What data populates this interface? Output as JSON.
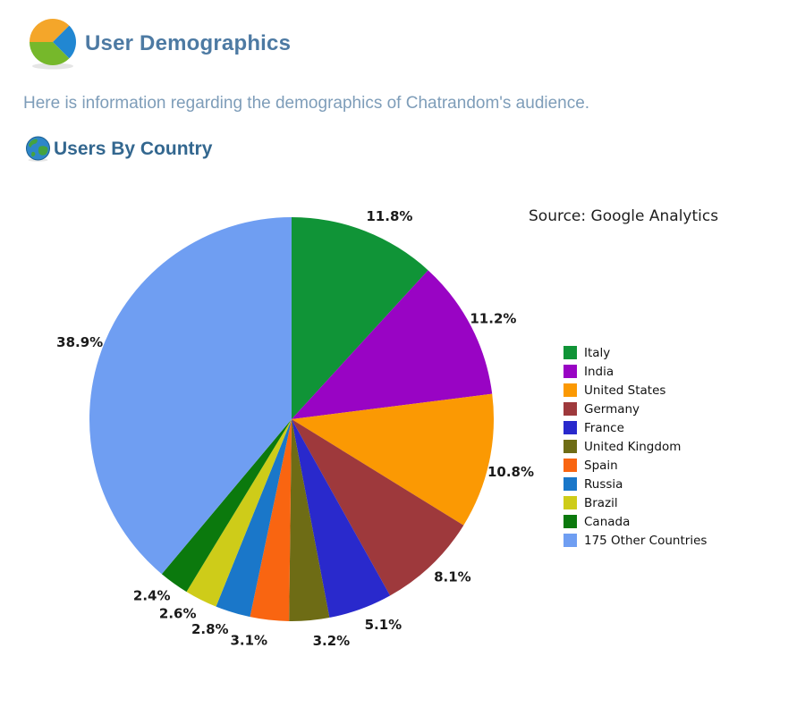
{
  "header": {
    "title": "User Demographics"
  },
  "intro": {
    "text": "Here is information regarding the demographics of Chatrandom's audience."
  },
  "section": {
    "title": "Users By Country"
  },
  "chart": {
    "source_text": "Source: Google Analytics"
  },
  "icons": {
    "header_icon": "pie-chart-icon",
    "section_icon": "globe-icon"
  },
  "colors": {
    "page_title": "#4D7AA3",
    "intro_text": "#7E9DB9",
    "section_title": "#33678F",
    "label_text": "#1A1A1A"
  },
  "chart_data": {
    "type": "pie",
    "title": "Users By Country",
    "source": "Google Analytics",
    "start_angle_deg": 0,
    "direction": "clockwise",
    "legend_position": "right",
    "slices": [
      {
        "label": "Italy",
        "value": 11.8,
        "pct_label": "11.8%",
        "color": "#109437"
      },
      {
        "label": "India",
        "value": 11.2,
        "pct_label": "11.2%",
        "color": "#9904C4"
      },
      {
        "label": "United States",
        "value": 10.8,
        "pct_label": "10.8%",
        "color": "#FB9903"
      },
      {
        "label": "Germany",
        "value": 8.1,
        "pct_label": "8.1%",
        "color": "#9E393C"
      },
      {
        "label": "France",
        "value": 5.1,
        "pct_label": "5.1%",
        "color": "#2929CC"
      },
      {
        "label": "United Kingdom",
        "value": 3.2,
        "pct_label": "3.2%",
        "color": "#6E6C15"
      },
      {
        "label": "Spain",
        "value": 3.1,
        "pct_label": "3.1%",
        "color": "#F96511"
      },
      {
        "label": "Russia",
        "value": 2.8,
        "pct_label": "2.8%",
        "color": "#1A77C9"
      },
      {
        "label": "Brazil",
        "value": 2.6,
        "pct_label": "2.6%",
        "color": "#CECC19"
      },
      {
        "label": "Canada",
        "value": 2.4,
        "pct_label": "2.4%",
        "color": "#0B790D"
      },
      {
        "label": "175 Other Countries",
        "value": 38.9,
        "pct_label": "38.9%",
        "color": "#6F9EF2"
      }
    ]
  }
}
